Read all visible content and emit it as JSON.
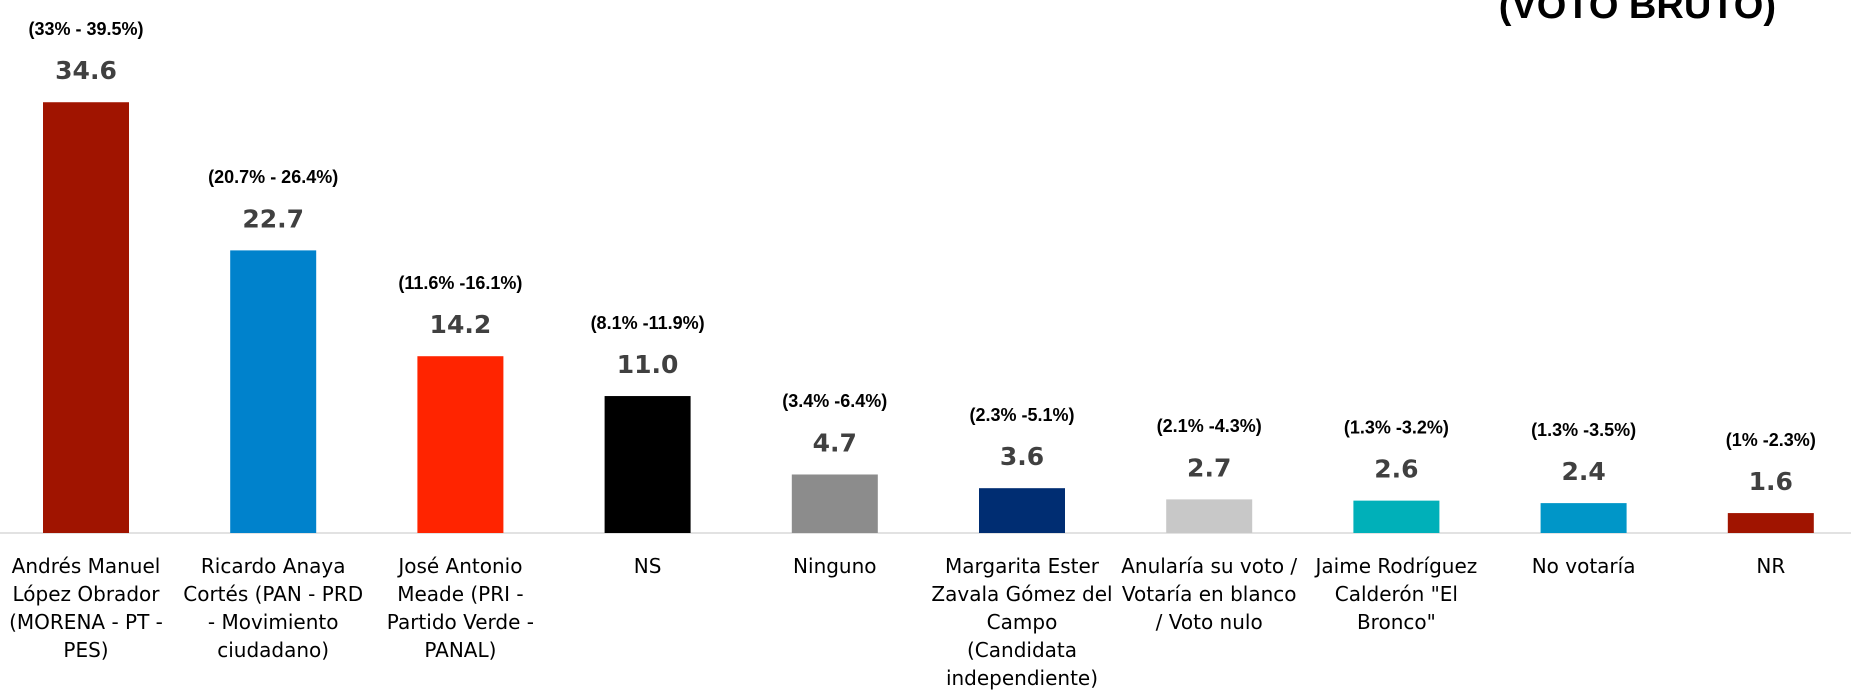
{
  "chart_data": {
    "type": "bar",
    "title": "(VOTO BRUTO)",
    "categories": [
      "Andrés Manuel López Obrador (MORENA - PT - PES)",
      "Ricardo Anaya Cortés (PAN - PRD - Movimiento ciudadano)",
      "José Antonio Meade (PRI - Partido Verde - PANAL)",
      "NS",
      "Ninguno",
      "Margarita Ester Zavala Gómez del Campo (Candidata independiente)",
      "Anularía su voto / Votaría en blanco / Voto nulo",
      "Jaime Rodríguez Calderón \"El Bronco\"",
      "No votaría",
      "NR"
    ],
    "values": [
      34.6,
      22.7,
      14.2,
      11.0,
      4.7,
      3.6,
      2.7,
      2.6,
      2.4,
      1.6
    ],
    "value_labels": [
      "34.6",
      "22.7",
      "14.2",
      "11.0",
      "4.7",
      "3.6",
      "2.7",
      "2.6",
      "2.4",
      "1.6"
    ],
    "intervals": [
      "(33% - 39.5%)",
      "(20.7% - 26.4%)",
      "(11.6% -16.1%)",
      "(8.1% -11.9%)",
      "(3.4% -6.4%)",
      "(2.3% -5.1%)",
      "(2.1% -4.3%)",
      "(1.3% -3.2%)",
      "(1.3% -3.5%)",
      "(1% -2.3%)"
    ],
    "colors": [
      "#a01400",
      "#0082cc",
      "#ff2400",
      "#000000",
      "#8c8c8c",
      "#002d72",
      "#c8c8c8",
      "#00b0b9",
      "#0096c8",
      "#a01400"
    ]
  }
}
